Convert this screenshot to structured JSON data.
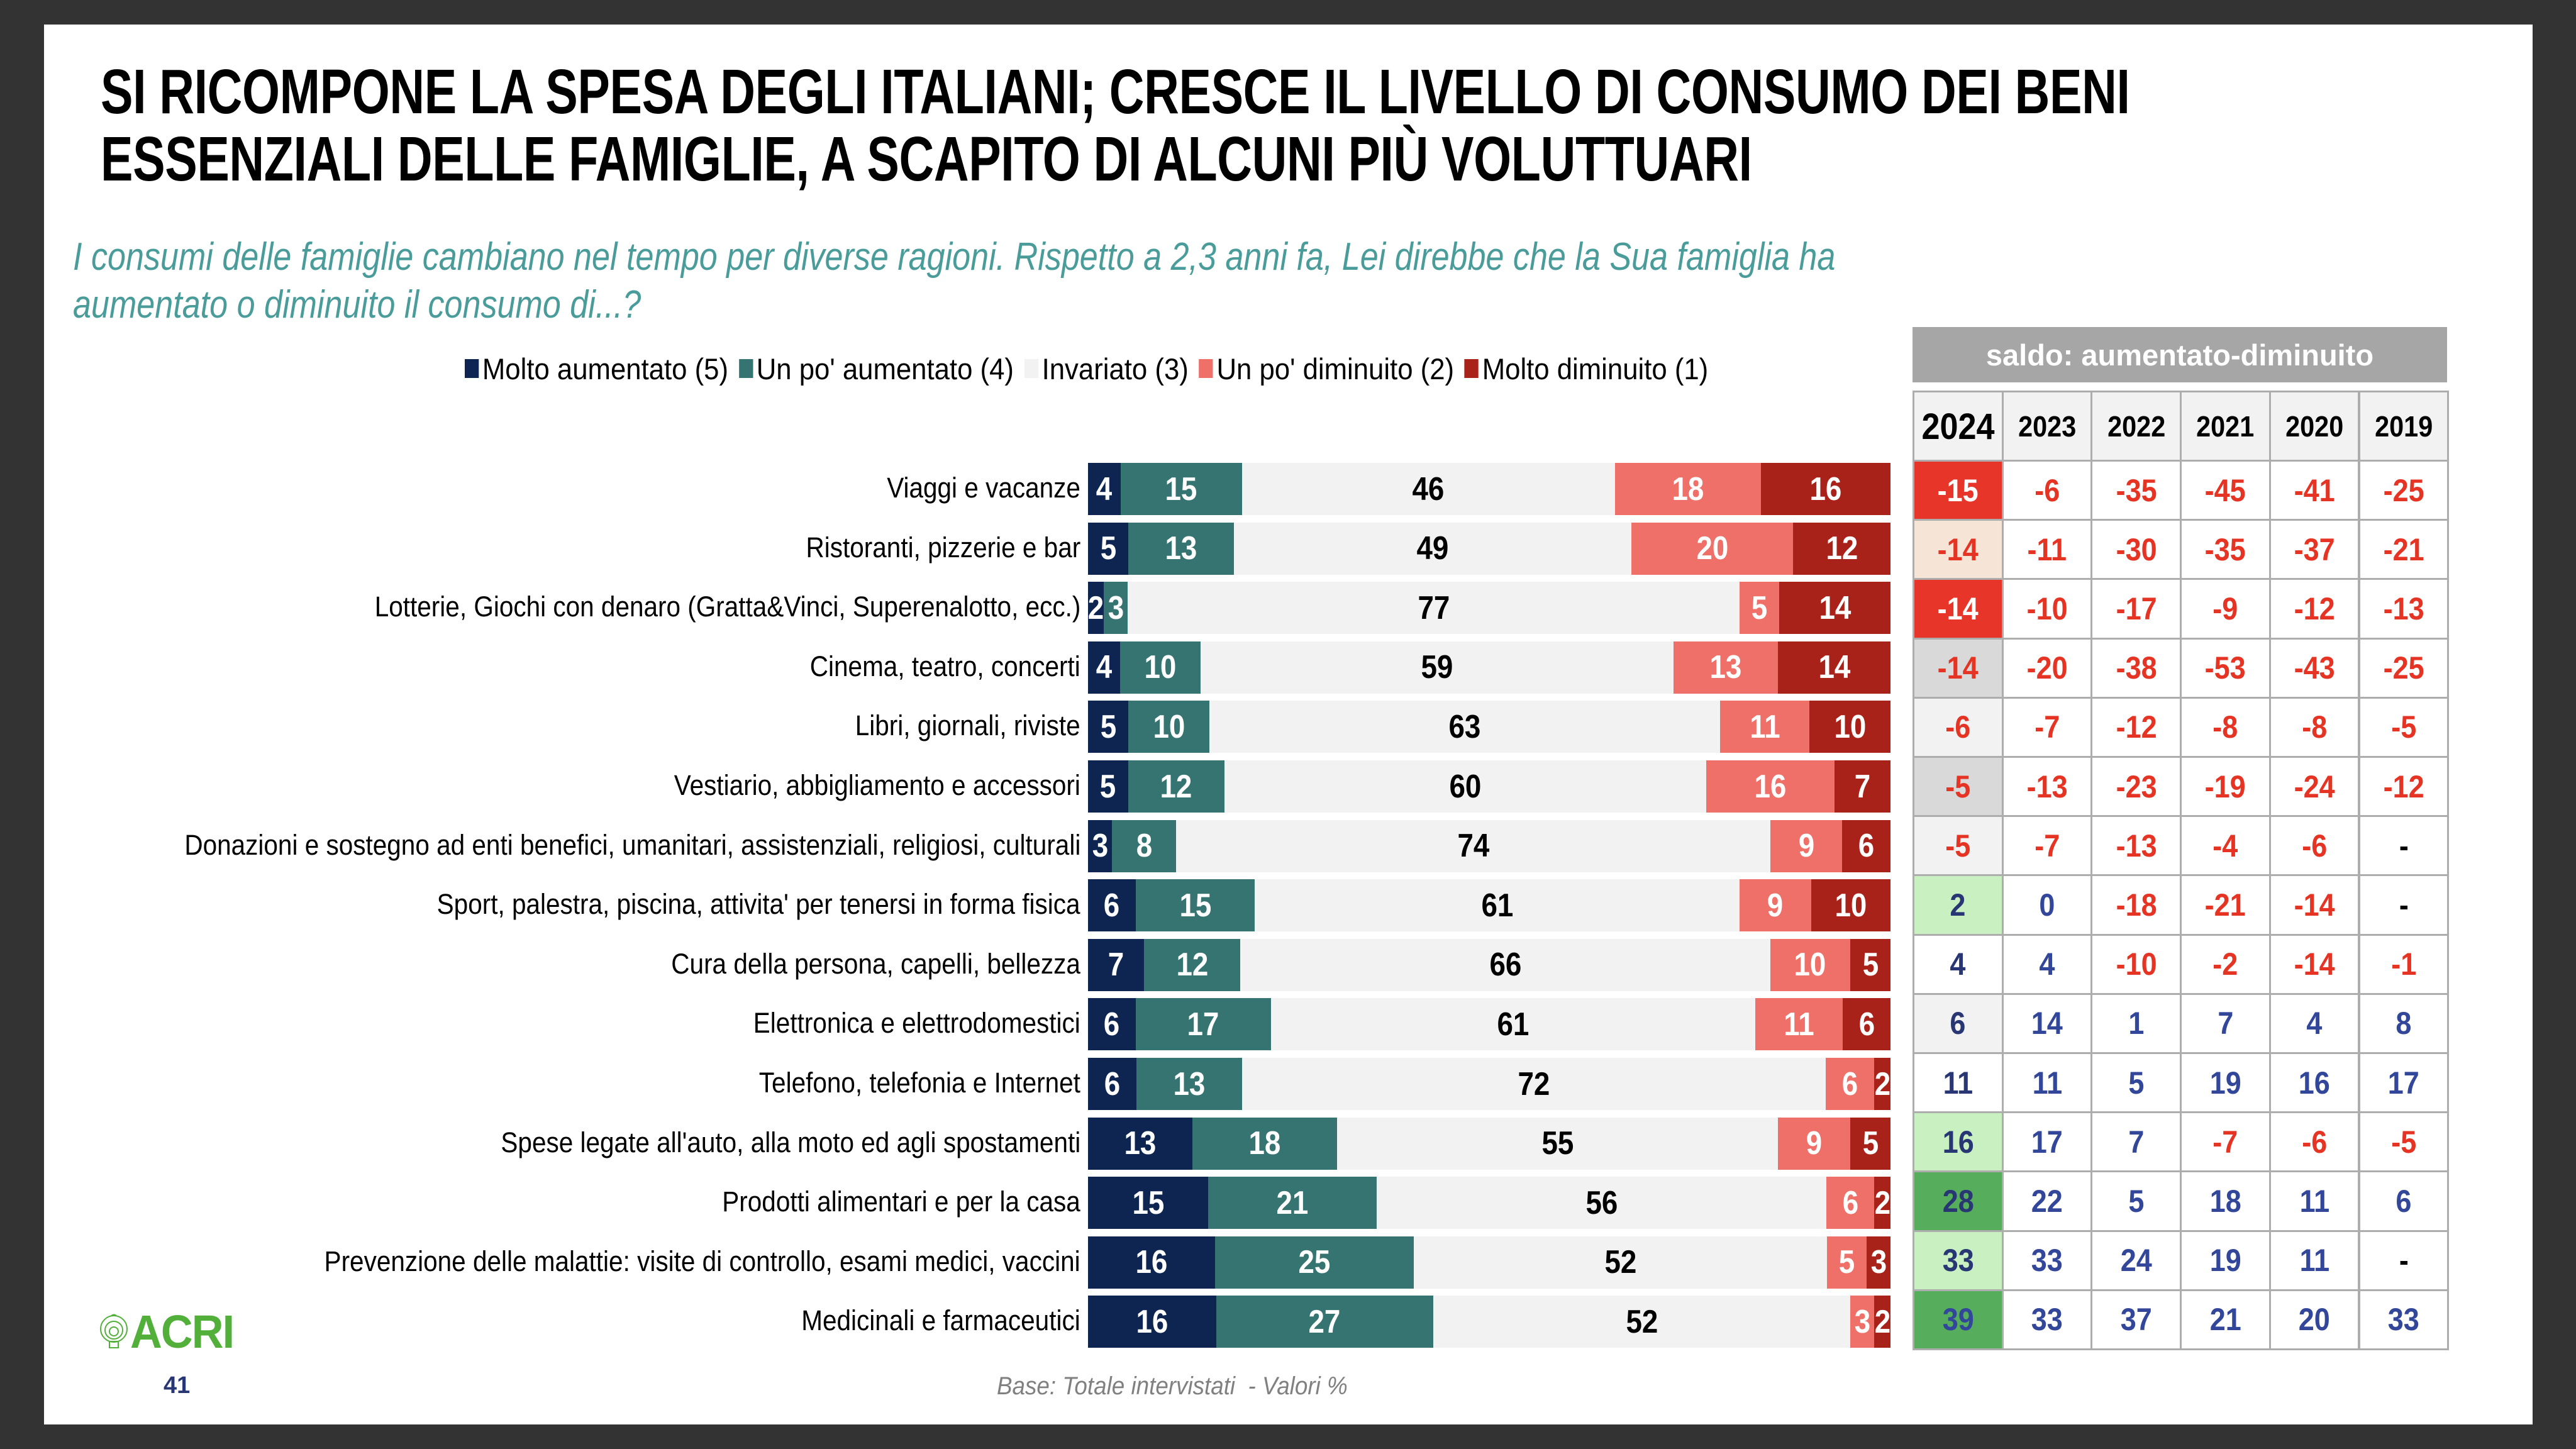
{
  "title": {
    "line1": "SI RICOMPONE LA SPESA DEGLI ITALIANI; CRESCE IL LIVELLO DI CONSUMO DEI BENI",
    "line2": "ESSENZIALI DELLE FAMIGLIE, A SCAPITO DI ALCUNI PIÙ VOLUTTUARI"
  },
  "subtitle": {
    "line1": "I consumi delle famiglie cambiano nel tempo per diverse ragioni. Rispetto a 2,3 anni fa, Lei direbbe che la Sua famiglia ha",
    "line2": "aumentato o diminuito il consumo di...?"
  },
  "footer": {
    "logo_text": "ACRI",
    "logo_icon": "concentric-circle-logo-icon",
    "page_number": "41",
    "base_note": "Base: Totale intervistati  - Valori %"
  },
  "colors": {
    "molto_aumentato": "#0d2550",
    "un_po_aumentato": "#367472",
    "invariato": "#f2f2f2",
    "un_po_diminuito": "#ef7068",
    "molto_diminuito": "#a92219",
    "saldo_negative_text": "#e53424",
    "saldo_positive_text": "#32469a",
    "saldo_positive_text_2024": "#283673",
    "logo_green": "#52b03a"
  },
  "chart_data": [
    {
      "type": "bar",
      "orientation": "horizontal-stacked-100",
      "title": "",
      "xlabel": "",
      "ylabel": "",
      "xlim": [
        0,
        100
      ],
      "legend_position": "top",
      "legend": [
        "Molto aumentato (5)",
        "Un po' aumentato (4)",
        "Invariato (3)",
        "Un po' diminuito (2)",
        "Molto diminuito (1)"
      ],
      "categories": [
        "Viaggi e vacanze",
        "Ristoranti, pizzerie e bar",
        "Lotterie, Giochi con denaro (Gratta&Vinci, Superenalotto, ecc.)",
        "Cinema, teatro, concerti",
        "Libri, giornali, riviste",
        "Vestiario, abbigliamento e accessori",
        "Donazioni e sostegno ad enti benefici, umanitari, assistenziali, religiosi, culturali",
        "Sport, palestra, piscina, attivita' per tenersi in forma fisica",
        "Cura della persona, capelli, bellezza",
        "Elettronica e elettrodomestici",
        "Telefono, telefonia e Internet",
        "Spese legate all'auto, alla moto ed agli spostamenti",
        "Prodotti alimentari e per la casa",
        "Prevenzione delle malattie: visite di controllo, esami medici, vaccini",
        "Medicinali e farmaceutici"
      ],
      "series": [
        {
          "name": "Molto aumentato (5)",
          "key": "molto_aumentato",
          "values": [
            4,
            5,
            2,
            4,
            5,
            5,
            3,
            6,
            7,
            6,
            6,
            13,
            15,
            16,
            16
          ]
        },
        {
          "name": "Un po' aumentato (4)",
          "key": "un_po_aumentato",
          "values": [
            15,
            13,
            3,
            10,
            10,
            12,
            8,
            15,
            12,
            17,
            13,
            18,
            21,
            25,
            27
          ]
        },
        {
          "name": "Invariato (3)",
          "key": "invariato",
          "values": [
            46,
            49,
            77,
            59,
            63,
            60,
            74,
            61,
            66,
            61,
            72,
            55,
            56,
            52,
            52
          ]
        },
        {
          "name": "Un po' diminuito (2)",
          "key": "un_po_diminuito",
          "values": [
            18,
            20,
            5,
            13,
            11,
            16,
            9,
            9,
            10,
            11,
            6,
            9,
            6,
            5,
            3
          ]
        },
        {
          "name": "Molto diminuito (1)",
          "key": "molto_diminuito",
          "values": [
            16,
            12,
            14,
            14,
            10,
            7,
            6,
            10,
            5,
            6,
            2,
            5,
            2,
            3,
            2
          ]
        }
      ]
    },
    {
      "type": "table",
      "title": "saldo: aumentato-diminuito",
      "columns": [
        "2024",
        "2023",
        "2022",
        "2021",
        "2020",
        "2019"
      ],
      "rows": [
        {
          "values": [
            "-15",
            "-6",
            "-35",
            "-45",
            "-41",
            "-25"
          ],
          "highlight_2024": "#e8352a",
          "text_2024": "#ffffff"
        },
        {
          "values": [
            "-14",
            "-11",
            "-30",
            "-35",
            "-37",
            "-21"
          ],
          "highlight_2024": "#f6e4d6",
          "text_2024": "#e53424"
        },
        {
          "values": [
            "-14",
            "-10",
            "-17",
            "-9",
            "-12",
            "-13"
          ],
          "highlight_2024": "#e8352a",
          "text_2024": "#ffffff"
        },
        {
          "values": [
            "-14",
            "-20",
            "-38",
            "-53",
            "-43",
            "-25"
          ],
          "highlight_2024": "#d9d9d9",
          "text_2024": "#e53424"
        },
        {
          "values": [
            "-6",
            "-7",
            "-12",
            "-8",
            "-8",
            "-5"
          ],
          "highlight_2024": "#f2f2f2",
          "text_2024": "#e53424"
        },
        {
          "values": [
            "-5",
            "-13",
            "-23",
            "-19",
            "-24",
            "-12"
          ],
          "highlight_2024": "#d9d9d9",
          "text_2024": "#e53424"
        },
        {
          "values": [
            "-5",
            "-7",
            "-13",
            "-4",
            "-6",
            "-"
          ],
          "highlight_2024": "#f2f2f2",
          "text_2024": "#e53424"
        },
        {
          "values": [
            "2",
            "0",
            "-18",
            "-21",
            "-14",
            "-"
          ],
          "highlight_2024": "#c8f0c0",
          "text_2024": "#283673"
        },
        {
          "values": [
            "4",
            "4",
            "-10",
            "-2",
            "-14",
            "-1"
          ],
          "highlight_2024": "#ffffff",
          "text_2024": "#283673"
        },
        {
          "values": [
            "6",
            "14",
            "1",
            "7",
            "4",
            "8"
          ],
          "highlight_2024": "#f2f2f2",
          "text_2024": "#283673"
        },
        {
          "values": [
            "11",
            "11",
            "5",
            "19",
            "16",
            "17"
          ],
          "highlight_2024": "#ffffff",
          "text_2024": "#283673"
        },
        {
          "values": [
            "16",
            "17",
            "7",
            "-7",
            "-6",
            "-5"
          ],
          "highlight_2024": "#c8f0c0",
          "text_2024": "#283673"
        },
        {
          "values": [
            "28",
            "22",
            "5",
            "18",
            "11",
            "6"
          ],
          "highlight_2024": "#56ad5c",
          "text_2024": "#283673"
        },
        {
          "values": [
            "33",
            "33",
            "24",
            "19",
            "11",
            "-"
          ],
          "highlight_2024": "#c8f0c0",
          "text_2024": "#283673"
        },
        {
          "values": [
            "39",
            "33",
            "37",
            "21",
            "20",
            "33"
          ],
          "highlight_2024": "#56ad5c",
          "text_2024": "#32469a"
        }
      ]
    }
  ]
}
